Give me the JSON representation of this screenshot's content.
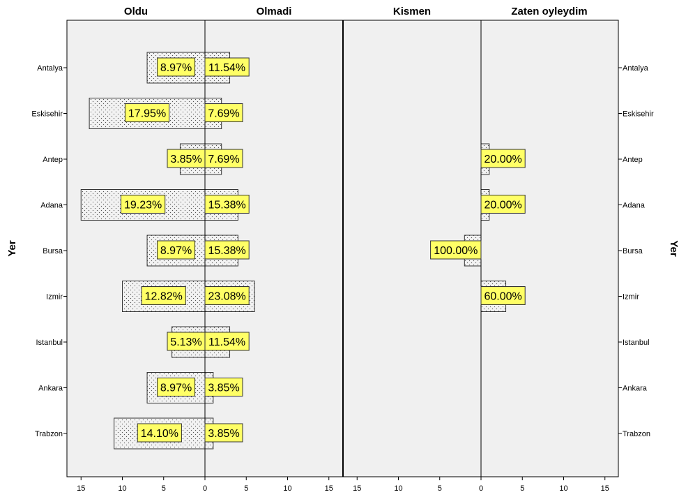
{
  "chart_data": {
    "type": "bar",
    "orientation": "horizontal",
    "layout": "back-to-back",
    "panel_titles": [
      "Oldu",
      "Olmadi",
      "Kismen",
      "Zaten oyleydim"
    ],
    "y_axis_title": "Yer",
    "categories": [
      "Antalya",
      "Eskisehir",
      "Antep",
      "Adana",
      "Bursa",
      "Izmir",
      "Istanbul",
      "Ankara",
      "Trabzon"
    ],
    "xlim": [
      0,
      15
    ],
    "xticks": [
      15,
      10,
      5,
      0,
      5,
      10,
      15
    ],
    "grid": false,
    "panels": [
      {
        "name": "Oldu",
        "direction": "left",
        "values": [
          7,
          14,
          3,
          15,
          7,
          10,
          4,
          7,
          11
        ],
        "labels": [
          "8.97%",
          "17.95%",
          "3.85%",
          "19.23%",
          "8.97%",
          "12.82%",
          "5.13%",
          "8.97%",
          "14.10%"
        ]
      },
      {
        "name": "Olmadi",
        "direction": "right",
        "values": [
          3,
          2,
          2,
          4,
          4,
          6,
          3,
          1,
          1
        ],
        "labels": [
          "11.54%",
          "7.69%",
          "7.69%",
          "15.38%",
          "15.38%",
          "23.08%",
          "11.54%",
          "3.85%",
          "3.85%"
        ]
      },
      {
        "name": "Kismen",
        "direction": "left",
        "values": [
          0,
          0,
          0,
          0,
          2,
          0,
          0,
          0,
          0
        ],
        "labels": [
          "",
          "",
          "",
          "",
          "100.00%",
          "",
          "",
          "",
          ""
        ]
      },
      {
        "name": "Zaten oyleydim",
        "direction": "right",
        "values": [
          0,
          0,
          1,
          1,
          0,
          3,
          0,
          0,
          0
        ],
        "labels": [
          "",
          "",
          "20.00%",
          "20.00%",
          "",
          "60.00%",
          "",
          "",
          ""
        ]
      }
    ],
    "colors": {
      "panel_bg": "#f0f0f0",
      "bar_fill": "#f2f2f2",
      "bar_stroke": "#333333",
      "dot": "#555555",
      "label_bg": "#ffff66",
      "label_border": "#333333"
    }
  }
}
